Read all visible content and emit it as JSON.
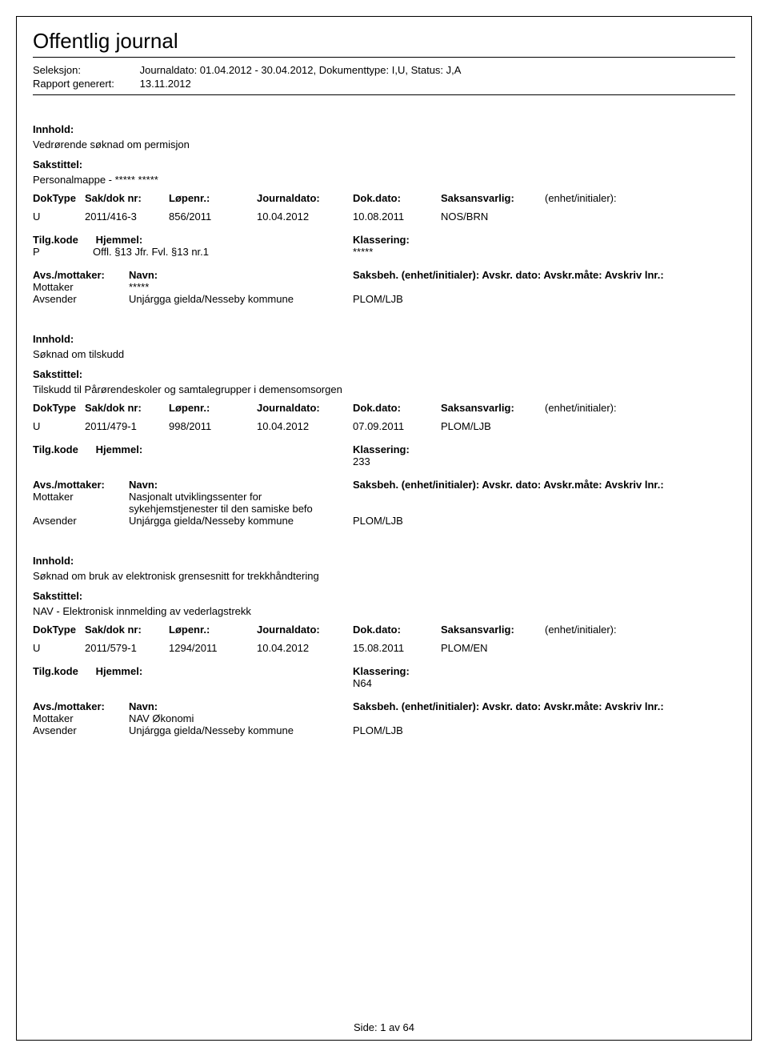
{
  "header": {
    "title": "Offentlig journal",
    "seleksjon_label": "Seleksjon:",
    "seleksjon_value": "Journaldato: 01.04.2012 - 30.04.2012, Dokumenttype: I,U, Status: J,A",
    "rapport_label": "Rapport generert:",
    "rapport_value": "13.11.2012"
  },
  "labels": {
    "innhold": "Innhold:",
    "sakstittel": "Sakstittel:",
    "doktype": "DokType",
    "sakdok": "Sak/dok nr:",
    "lopenr": "Løpenr.:",
    "journaldato": "Journaldato:",
    "dokdato": "Dok.dato:",
    "saksansvarlig": "Saksansvarlig:",
    "enhetinit": "(enhet/initialer):",
    "tilgkode": "Tilg.kode",
    "hjemmel": "Hjemmel:",
    "klassering": "Klassering:",
    "avsmot": "Avs./mottaker:",
    "navn": "Navn:",
    "saksbeh": "Saksbeh. (enhet/initialer): Avskr. dato:  Avskr.måte:  Avskriv lnr.:"
  },
  "records": [
    {
      "innhold": "Vedrørende søknad om permisjon",
      "sakstittel": "Personalmappe - ***** *****",
      "doktype": "U",
      "sakdok": "2011/416-3",
      "lopenr": "856/2011",
      "journaldato": "10.04.2012",
      "dokdato": "10.08.2011",
      "saksansvarlig": "NOS/BRN",
      "tilgkode": "P",
      "hjemmel": "Offl. §13 Jfr. Fvl. §13 nr.1",
      "klassering": "*****",
      "parties": [
        {
          "role": "Mottaker",
          "navn": "*****",
          "saksbeh": ""
        },
        {
          "role": "Avsender",
          "navn": "Unjárgga gielda/Nesseby kommune",
          "saksbeh": "PLOM/LJB"
        }
      ]
    },
    {
      "innhold": "Søknad om tilskudd",
      "sakstittel": "Tilskudd til Pårørendeskoler og samtalegrupper i demensomsorgen",
      "doktype": "U",
      "sakdok": "2011/479-1",
      "lopenr": "998/2011",
      "journaldato": "10.04.2012",
      "dokdato": "07.09.2011",
      "saksansvarlig": "PLOM/LJB",
      "tilgkode": "",
      "hjemmel": "",
      "klassering": "233",
      "parties": [
        {
          "role": "Mottaker",
          "navn": "Nasjonalt utviklingssenter for sykehjemstjenester til den samiske befo",
          "saksbeh": ""
        },
        {
          "role": "Avsender",
          "navn": "Unjárgga gielda/Nesseby kommune",
          "saksbeh": "PLOM/LJB"
        }
      ]
    },
    {
      "innhold": "Søknad om bruk av elektronisk grensesnitt for trekkhåndtering",
      "sakstittel": "NAV - Elektronisk innmelding av vederlagstrekk",
      "doktype": "U",
      "sakdok": "2011/579-1",
      "lopenr": "1294/2011",
      "journaldato": "10.04.2012",
      "dokdato": "15.08.2011",
      "saksansvarlig": "PLOM/EN",
      "tilgkode": "",
      "hjemmel": "",
      "klassering": "N64",
      "parties": [
        {
          "role": "Mottaker",
          "navn": "NAV Økonomi",
          "saksbeh": ""
        },
        {
          "role": "Avsender",
          "navn": "Unjárgga gielda/Nesseby kommune",
          "saksbeh": "PLOM/LJB"
        }
      ]
    }
  ],
  "footer": {
    "side_label": "Side:",
    "page": "1",
    "av": "av",
    "total": "64"
  }
}
